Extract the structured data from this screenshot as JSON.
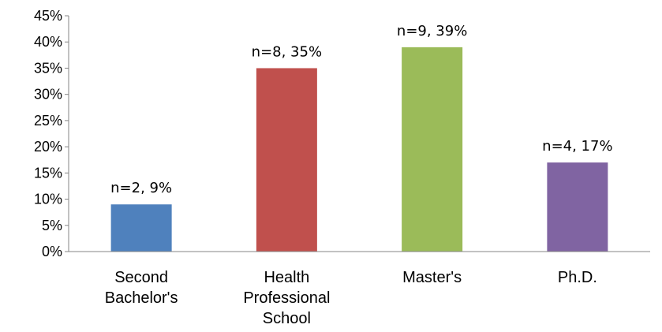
{
  "chart_data": {
    "type": "bar",
    "categories": [
      [
        "Second",
        "Bachelor's"
      ],
      [
        "Health",
        "Professional",
        "School"
      ],
      [
        "Master's"
      ],
      [
        "Ph.D."
      ]
    ],
    "values": [
      9,
      35,
      39,
      17
    ],
    "counts": [
      2,
      8,
      9,
      4
    ],
    "data_labels": [
      "n=2, 9%",
      "n=8, 35%",
      "n=9, 39%",
      "n=4, 17%"
    ],
    "colors": [
      "#4F81BD",
      "#C0504D",
      "#9BBB59",
      "#8064A2"
    ],
    "ylim": [
      0,
      45
    ],
    "ytick_step": 5,
    "ytick_labels": [
      "0%",
      "5%",
      "10%",
      "15%",
      "20%",
      "25%",
      "30%",
      "35%",
      "40%",
      "45%"
    ],
    "title": "",
    "xlabel": "",
    "ylabel": "",
    "grid": false,
    "legend": "none"
  }
}
